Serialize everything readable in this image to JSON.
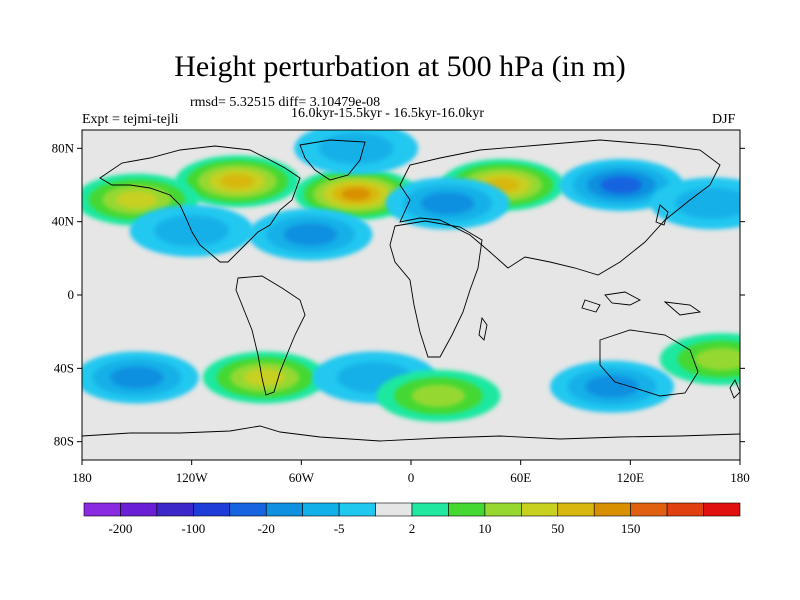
{
  "title": "Height perturbation at 500 hPa (in m)",
  "stats_line": "rmsd= 5.32515 diff= 3.10479e-08",
  "period_line": "16.0kyr-15.5kyr - 16.5kyr-16.0kyr",
  "experiment": "Expt = tejmi-tejli",
  "season": "DJF",
  "map": {
    "projection": "cylindrical-equidistant",
    "lon_range": [
      -180,
      180
    ],
    "lat_range": [
      -90,
      90
    ],
    "lat_ticks": [
      {
        "value": 80,
        "label": "80N"
      },
      {
        "value": 40,
        "label": "40N"
      },
      {
        "value": 0,
        "label": "0"
      },
      {
        "value": -40,
        "label": "40S"
      },
      {
        "value": -80,
        "label": "80S"
      }
    ],
    "lon_ticks": [
      {
        "value": -180,
        "label": "180"
      },
      {
        "value": -120,
        "label": "120W"
      },
      {
        "value": -60,
        "label": "60W"
      },
      {
        "value": 0,
        "label": "0"
      },
      {
        "value": 60,
        "label": "60E"
      },
      {
        "value": 120,
        "label": "120E"
      },
      {
        "value": 180,
        "label": "180"
      }
    ],
    "fields": [
      {
        "name": "arctic-north-america-positive",
        "lon": -95,
        "lat": 62,
        "level": 5
      },
      {
        "name": "north-pacific-positive",
        "lon": -150,
        "lat": 52,
        "level": 4
      },
      {
        "name": "north-atlantic-positive",
        "lon": -30,
        "lat": 55,
        "level": 6
      },
      {
        "name": "central-asia-positive",
        "lon": 50,
        "lat": 60,
        "level": 5
      },
      {
        "name": "siberia-negative",
        "lon": 115,
        "lat": 60,
        "level": -4
      },
      {
        "name": "europe-negative",
        "lon": 20,
        "lat": 50,
        "level": -3
      },
      {
        "name": "west-atlantic-negative",
        "lon": -55,
        "lat": 33,
        "level": -3
      },
      {
        "name": "arctic-canada-negative",
        "lon": -30,
        "lat": 80,
        "level": -2
      },
      {
        "name": "north-pacific-west-negative",
        "lon": 165,
        "lat": 50,
        "level": -2
      },
      {
        "name": "east-pacific-negative",
        "lon": -120,
        "lat": 35,
        "level": -2
      },
      {
        "name": "south-pacific-negative",
        "lon": -150,
        "lat": -45,
        "level": -3
      },
      {
        "name": "southeast-pacific-positive",
        "lon": -80,
        "lat": -45,
        "level": 4
      },
      {
        "name": "south-atlantic-negative",
        "lon": -20,
        "lat": -45,
        "level": -2
      },
      {
        "name": "south-atlantic-positive",
        "lon": 15,
        "lat": -55,
        "level": 3
      },
      {
        "name": "southern-indian-negative",
        "lon": 110,
        "lat": -50,
        "level": -3
      },
      {
        "name": "southwest-pacific-positive",
        "lon": 170,
        "lat": -35,
        "level": 3
      }
    ]
  },
  "colorbar": {
    "colors": [
      "#8a2be2",
      "#6a1fd6",
      "#3c28c8",
      "#1e3cd8",
      "#1664e0",
      "#1090e0",
      "#12b0e8",
      "#20c8f0",
      "#e6e6e6",
      "#1fe8a0",
      "#44d830",
      "#96d830",
      "#c8d020",
      "#d8b810",
      "#d89000",
      "#e06010",
      "#e04010",
      "#e01010"
    ],
    "labels": [
      {
        "boundary": 1,
        "text": "-200"
      },
      {
        "boundary": 3,
        "text": "-100"
      },
      {
        "boundary": 5,
        "text": "-20"
      },
      {
        "boundary": 7,
        "text": "-5"
      },
      {
        "boundary": 9,
        "text": "2"
      },
      {
        "boundary": 11,
        "text": "10"
      },
      {
        "boundary": 13,
        "text": "50"
      },
      {
        "boundary": 15,
        "text": "150"
      }
    ]
  }
}
